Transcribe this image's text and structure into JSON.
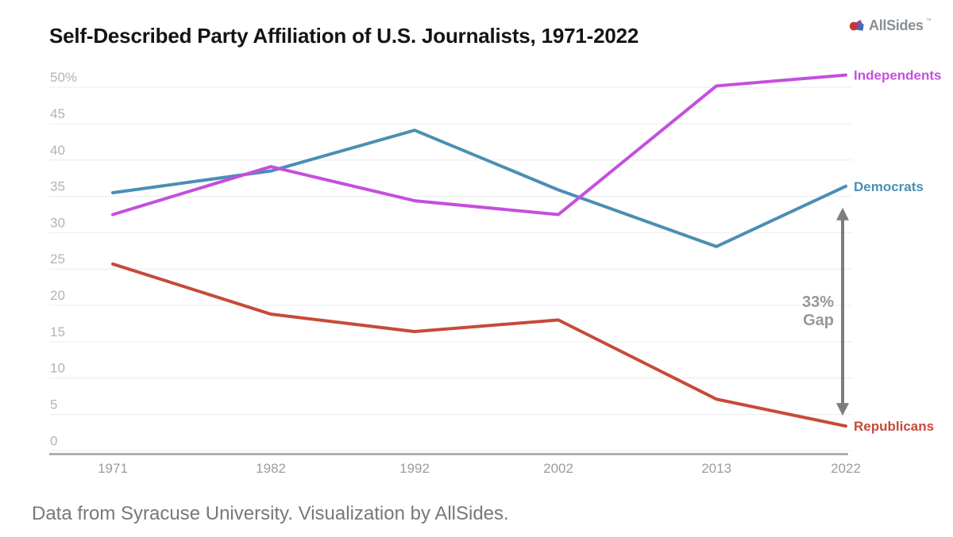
{
  "header": {
    "title": "Self-Described Party Affiliation of U.S. Journalists, 1971-2022",
    "logo": {
      "text": "AllSides",
      "tm": "™",
      "icon_colors": {
        "red": "#c8372f",
        "blue": "#3f6fb0",
        "purple": "#7e52a5"
      }
    }
  },
  "chart_data": {
    "type": "line",
    "title": "Self-Described Party Affiliation of U.S. Journalists, 1971-2022",
    "x": [
      1971,
      1982,
      1992,
      2002,
      2013,
      2022
    ],
    "x_tick_labels": [
      "1971",
      "1982",
      "1992",
      "2002",
      "2013",
      "2022"
    ],
    "series": [
      {
        "name": "Independents",
        "color": "#c44fdd",
        "values": [
          32.5,
          39.1,
          34.4,
          32.5,
          50.2,
          51.7
        ]
      },
      {
        "name": "Democrats",
        "color": "#4a8fb4",
        "values": [
          35.5,
          38.5,
          44.1,
          35.9,
          28.1,
          36.4
        ]
      },
      {
        "name": "Republicans",
        "color": "#c74a38",
        "values": [
          25.7,
          18.8,
          16.4,
          18.0,
          7.1,
          3.4
        ]
      }
    ],
    "ylim": [
      0,
      50
    ],
    "ytick_step": 5,
    "ytick_top_label": "50%",
    "grid": "horizontal",
    "legend_position": "right-end-labels",
    "annotation": {
      "line1": "33%",
      "line2": "Gap",
      "arrow": "double-headed-vertical",
      "between": [
        "Democrats",
        "Republicans"
      ],
      "text_color": "#989898",
      "arrow_color": "#7d7d7d"
    },
    "axis_colors": {
      "gridline": "#ececec",
      "axis_line": "#b0b0b0",
      "ytick_label": "#b3b3b3",
      "xtick_label": "#9c9c9c"
    }
  },
  "footer": {
    "caption": "Data from Syracuse University. Visualization by AllSides."
  }
}
